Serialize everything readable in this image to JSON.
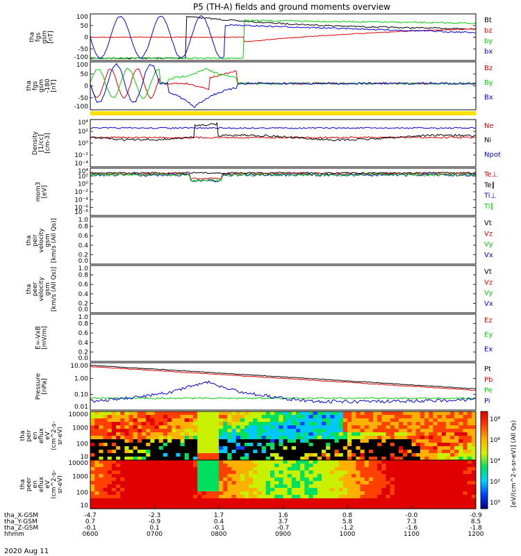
{
  "title": "P5 (TH-A) fields and ground moments overview",
  "date": "2020 Aug 11",
  "colors": {
    "black": "#000000",
    "red": "#e00000",
    "green": "#00d000",
    "blue": "#0000e0",
    "yellow": "#ffe000"
  },
  "panels": [
    {
      "id": "fgs",
      "ylabel": [
        "tha",
        "fgs",
        "gsm",
        "[nT]"
      ],
      "yticks": [
        "100",
        "50",
        "0",
        "-50",
        "-100"
      ],
      "legend": [
        {
          "label": "Bt",
          "color": "black"
        },
        {
          "label": "bz",
          "color": "red"
        },
        {
          "label": "by",
          "color": "green"
        },
        {
          "label": "bx",
          "color": "blue"
        }
      ]
    },
    {
      "id": "fgs_dsl",
      "ylabel": [
        "tha",
        "fgs",
        "gsm",
        "-180",
        "[nT]"
      ],
      "yticks": [
        "100",
        "50",
        "0",
        "-50",
        "-100"
      ],
      "legend": [
        {
          "label": "Bz",
          "color": "red"
        },
        {
          "label": "By",
          "color": "green"
        },
        {
          "label": "Bx",
          "color": "blue"
        }
      ]
    },
    {
      "id": "density",
      "ylabel": [
        "Density",
        "[1/cc]",
        "[cm-3]"
      ],
      "yticks": [
        "10⁴",
        "10²",
        "10⁰",
        "10⁻²",
        "10⁻⁴"
      ],
      "legend": [
        {
          "label": "Ne",
          "color": "red"
        },
        {
          "label": "Ni",
          "color": "black"
        },
        {
          "label": "Npot",
          "color": "blue"
        }
      ]
    },
    {
      "id": "temp",
      "ylabel": [
        "mom3",
        "[eV]"
      ],
      "yticks": [
        "10⁴",
        "10²",
        "10⁰",
        "10⁻²",
        "10⁻⁴",
        "10⁻⁶",
        "10⁻⁸"
      ],
      "legend": [
        {
          "label": "Te⊥",
          "color": "red"
        },
        {
          "label": "Te∥",
          "color": "black"
        },
        {
          "label": "Ti⊥",
          "color": "blue"
        },
        {
          "label": "Ti∥",
          "color": "green"
        }
      ]
    },
    {
      "id": "peir_v",
      "ylabel": [
        "tha",
        "peir",
        "velocity",
        "gsm",
        "[km/s (All Qs)]"
      ],
      "yticks": [
        "1.0",
        "0.8",
        "0.6",
        "0.4",
        "0.2",
        "0.0"
      ],
      "legend": [
        {
          "label": "Vt",
          "color": "black"
        },
        {
          "label": "Vz",
          "color": "red"
        },
        {
          "label": "Vy",
          "color": "green"
        },
        {
          "label": "Vx",
          "color": "blue"
        }
      ]
    },
    {
      "id": "peer_v",
      "ylabel": [
        "tha",
        "peer",
        "velocity",
        "gsm",
        "[km/s (All Qs)]"
      ],
      "yticks": [
        "1.0",
        "0.8",
        "0.6",
        "0.4",
        "0.2",
        "0.0"
      ],
      "legend": [
        {
          "label": "Vt",
          "color": "black"
        },
        {
          "label": "Vz",
          "color": "red"
        },
        {
          "label": "Vy",
          "color": "green"
        },
        {
          "label": "Vx",
          "color": "blue"
        }
      ]
    },
    {
      "id": "efield",
      "ylabel": [
        "E=-VxB",
        "[mV/m]"
      ],
      "yticks": [
        "1.0",
        "0.8",
        "0.6",
        "0.4",
        "0.2",
        "0.0"
      ],
      "legend": [
        {
          "label": "Ez",
          "color": "red"
        },
        {
          "label": "Ey",
          "color": "green"
        },
        {
          "label": "Ex",
          "color": "blue"
        }
      ]
    },
    {
      "id": "pressure",
      "ylabel": [
        "Pressure",
        "[nPa]"
      ],
      "yticks": [
        "10.00",
        "1.00",
        "0.10",
        "0.01"
      ],
      "legend": [
        {
          "label": "Pt",
          "color": "black"
        },
        {
          "label": "Pb",
          "color": "red"
        },
        {
          "label": "Pe",
          "color": "green"
        },
        {
          "label": "Pi",
          "color": "blue"
        }
      ]
    },
    {
      "id": "peir_spec",
      "ylabel": [
        "tha",
        "peir",
        "en",
        "eflux",
        "eV",
        "(cm^2-s-",
        "sr-eV)"
      ],
      "yticks": [
        "10000",
        "1000",
        "100",
        "10"
      ]
    },
    {
      "id": "peer_spec",
      "ylabel": [
        "tha",
        "peer",
        "en",
        "eflux",
        "eV",
        "(cm^2-s-",
        "sr-eV)"
      ],
      "yticks": [
        "10000",
        "1000",
        "100",
        "10"
      ]
    }
  ],
  "colorbar": {
    "ticks": [
      "10⁸",
      "10⁶",
      "10⁴",
      "10²",
      "10⁰"
    ],
    "label": "[eV/(cm^2-s-sr-eV)] (All Qs)",
    "label2": "[eV/(cm^2-s-sr-eV)] (All Qs)"
  },
  "chart_data": {
    "type": "line",
    "x": [
      "0600",
      "0700",
      "0800",
      "0900",
      "1000",
      "1100",
      "1200"
    ],
    "xlabel": "hhmm",
    "ephemeris": [
      {
        "name": "tha_X-GSM",
        "values": [
          "-4.7",
          "-2.3",
          "1.7",
          "1.6",
          "0.8",
          "-0.0",
          "-0.9"
        ]
      },
      {
        "name": "tha_Y-GSM",
        "values": [
          "0.7",
          "-0.9",
          "0.4",
          "3.7",
          "5.8",
          "7.3",
          "8.5"
        ]
      },
      {
        "name": "tha_Z-GSM",
        "values": [
          "-0.1",
          "0.1",
          "-0.1",
          "-0.7",
          "-1.2",
          "-1.6",
          "-1.8"
        ]
      }
    ]
  }
}
